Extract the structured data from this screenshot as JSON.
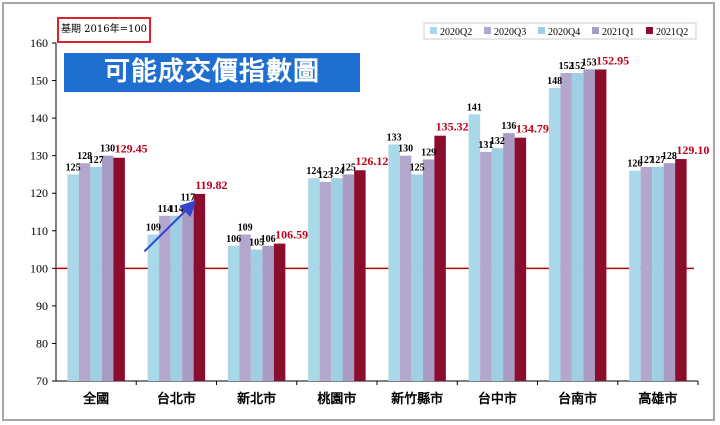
{
  "base_note": "基期 2016年=100",
  "title": "可能成交價指數圖",
  "colors": {
    "2020Q2": "#a9d9e8",
    "2020Q3": "#b3a7cd",
    "2020Q4": "#9fcfe4",
    "2021Q1": "#a99cc4",
    "2021Q2": "#8b0d2e",
    "highlight_label": "#c0001a",
    "reference_line": "#c00000",
    "arrow": "#3344cc"
  },
  "chart_data": {
    "type": "bar",
    "title": "可能成交價指數圖",
    "xlabel": "",
    "ylabel": "",
    "ylim": [
      70,
      160
    ],
    "yticks": [
      70,
      80,
      90,
      100,
      110,
      120,
      130,
      140,
      150,
      160
    ],
    "grid": false,
    "legend_position": "top-right",
    "reference_line": 100,
    "categories": [
      "全國",
      "台北市",
      "新北市",
      "桃園市",
      "新竹縣市",
      "台中市",
      "台南市",
      "高雄市"
    ],
    "series": [
      {
        "name": "2020Q2",
        "values": [
          125,
          109,
          106,
          124,
          133,
          141,
          148,
          126
        ]
      },
      {
        "name": "2020Q3",
        "values": [
          128,
          114,
          109,
          123,
          130,
          131,
          152,
          127
        ]
      },
      {
        "name": "2020Q4",
        "values": [
          127,
          114,
          105,
          124,
          125,
          132,
          152,
          127
        ]
      },
      {
        "name": "2021Q1",
        "values": [
          130,
          117,
          106,
          125,
          129,
          136,
          153,
          128
        ]
      },
      {
        "name": "2021Q2",
        "values": [
          129.45,
          119.82,
          106.59,
          126.12,
          135.32,
          134.79,
          152.95,
          129.1
        ]
      }
    ],
    "series_labels": [
      [
        "125",
        "109",
        "106",
        "124",
        "133",
        "141",
        "148",
        "126"
      ],
      [
        "128",
        "114",
        "109",
        "123",
        "130",
        "131",
        "152",
        "127"
      ],
      [
        "127",
        "114",
        "105",
        "124",
        "125",
        "132",
        "152",
        "127"
      ],
      [
        "130",
        "117",
        "106",
        "125",
        "129",
        "136",
        "153",
        "128"
      ],
      [
        "129.45",
        "119.82",
        "106.59",
        "126.12",
        "135.32",
        "134.79",
        "152.95",
        "129.10"
      ]
    ]
  }
}
